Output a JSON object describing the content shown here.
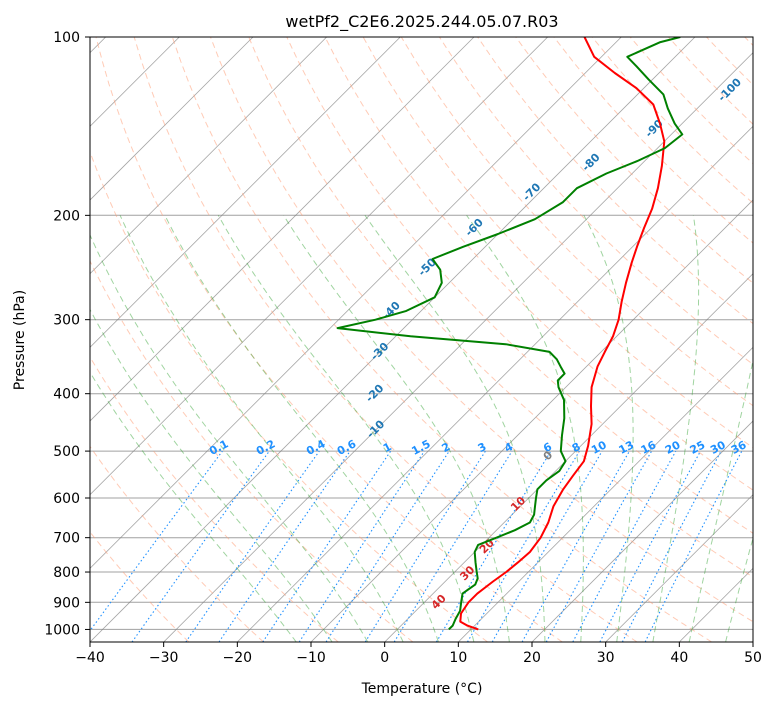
{
  "chart_data": {
    "type": "line",
    "title": "wetPf2_C2E6.2025.244.05.07.R03",
    "xlabel": "Temperature (°C)",
    "ylabel": "Pressure (hPa)",
    "xlim": [
      -40,
      50
    ],
    "ylim": [
      1050,
      100
    ],
    "y_scale": "log",
    "x_ticks": [
      -40,
      -30,
      -20,
      -10,
      0,
      10,
      20,
      30,
      40,
      50
    ],
    "y_ticks": [
      100,
      200,
      300,
      400,
      500,
      600,
      700,
      800,
      900,
      1000
    ],
    "grid": true,
    "skew": 45,
    "series": [
      {
        "role": "temperature",
        "color": "#ff0000",
        "points": [
          [
            11.0,
            1000
          ],
          [
            9.0,
            985
          ],
          [
            7.5,
            970
          ],
          [
            6.5,
            940
          ],
          [
            6.0,
            900
          ],
          [
            6.0,
            870
          ],
          [
            6.5,
            830
          ],
          [
            7.0,
            800
          ],
          [
            7.3,
            770
          ],
          [
            7.5,
            740
          ],
          [
            7.0,
            700
          ],
          [
            6.0,
            660
          ],
          [
            4.5,
            620
          ],
          [
            3.5,
            580
          ],
          [
            3.0,
            550
          ],
          [
            2.5,
            520
          ],
          [
            1.0,
            490
          ],
          [
            -1.5,
            450
          ],
          [
            -4.0,
            420
          ],
          [
            -6.5,
            390
          ],
          [
            -8.5,
            360
          ],
          [
            -9.5,
            340
          ],
          [
            -10.5,
            320
          ],
          [
            -12.0,
            300
          ],
          [
            -14.0,
            280
          ],
          [
            -16.0,
            260
          ],
          [
            -18.0,
            240
          ],
          [
            -19.5,
            225
          ],
          [
            -21.0,
            210
          ],
          [
            -22.5,
            195
          ],
          [
            -24.5,
            180
          ],
          [
            -27.0,
            165
          ],
          [
            -30.0,
            150
          ],
          [
            -33.0,
            140
          ],
          [
            -36.5,
            130
          ],
          [
            -41.0,
            122
          ],
          [
            -46.0,
            115
          ],
          [
            -51.0,
            108
          ],
          [
            -55.0,
            100
          ]
        ]
      },
      {
        "role": "dewpoint",
        "color": "#008000",
        "points": [
          [
            7.0,
            1000
          ],
          [
            7.0,
            985
          ],
          [
            6.5,
            960
          ],
          [
            6.0,
            930
          ],
          [
            5.0,
            900
          ],
          [
            4.0,
            870
          ],
          [
            4.5,
            840
          ],
          [
            4.0,
            820
          ],
          [
            3.0,
            800
          ],
          [
            1.5,
            770
          ],
          [
            0.0,
            740
          ],
          [
            -0.5,
            720
          ],
          [
            1.0,
            700
          ],
          [
            2.5,
            680
          ],
          [
            3.5,
            660
          ],
          [
            3.0,
            640
          ],
          [
            2.0,
            620
          ],
          [
            1.0,
            600
          ],
          [
            0.0,
            580
          ],
          [
            0.0,
            560
          ],
          [
            0.5,
            540
          ],
          [
            0.0,
            520
          ],
          [
            -2.0,
            500
          ],
          [
            -4.0,
            470
          ],
          [
            -6.0,
            440
          ],
          [
            -8.5,
            410
          ],
          [
            -11.0,
            390
          ],
          [
            -12.0,
            380
          ],
          [
            -12.0,
            370
          ],
          [
            -13.5,
            360
          ],
          [
            -15.0,
            350
          ],
          [
            -17.0,
            340
          ],
          [
            -24.0,
            330
          ],
          [
            -38.0,
            320
          ],
          [
            -49.0,
            310
          ],
          [
            -45.0,
            300
          ],
          [
            -42.0,
            290
          ],
          [
            -40.0,
            275
          ],
          [
            -41.0,
            260
          ],
          [
            -43.0,
            247
          ],
          [
            -45.5,
            237
          ],
          [
            -43.0,
            226
          ],
          [
            -40.0,
            215
          ],
          [
            -37.0,
            203
          ],
          [
            -35.5,
            190
          ],
          [
            -35.5,
            180
          ],
          [
            -33.5,
            170
          ],
          [
            -31.0,
            162
          ],
          [
            -29.0,
            154
          ],
          [
            -28.5,
            146
          ],
          [
            -31.0,
            140
          ],
          [
            -34.0,
            132
          ],
          [
            -36.5,
            125
          ],
          [
            -40.5,
            118
          ],
          [
            -44.0,
            112
          ],
          [
            -46.5,
            108
          ],
          [
            -44.0,
            102
          ],
          [
            -42.0,
            100
          ]
        ]
      }
    ],
    "dry_adiabat_labels": [
      "-100",
      "-90",
      "-80",
      "-70",
      "-60",
      "-50",
      "-40",
      "-30",
      "-20",
      "-10"
    ],
    "mixing_ratio_labels": [
      "0.1",
      "0.2",
      "0.4",
      "0.6",
      "1",
      "1.5",
      "2",
      "3",
      "4",
      "6",
      "8",
      "10",
      "13",
      "16",
      "20",
      "25",
      "30",
      "36"
    ],
    "moist_adiabat_labels": [
      "0",
      "10",
      "20",
      "30",
      "40"
    ],
    "colors": {
      "dry_adiabat_text": "#1f77b4",
      "mixing_ratio": "#1e90ff",
      "moist_adiabat_text": "#d62728",
      "moist_adiabat_zero": "#7f7f7f",
      "dry_adiabat_line": "#ffa07a",
      "moist_adiabat_line": "#2ca02c",
      "isotherm": "#808080",
      "isobar": "#a0a0a0"
    }
  }
}
